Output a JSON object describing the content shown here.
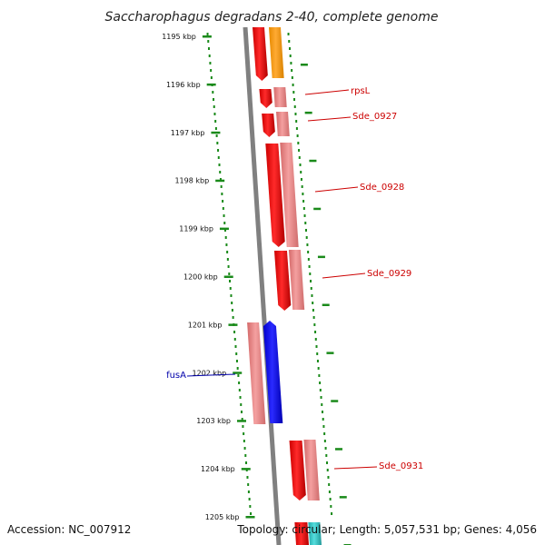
{
  "title": "Saccharophagus degradans 2-40, complete genome",
  "accession": "Accession: NC_007912",
  "topology": "Topology: circular; Length: 5,057,531 bp; Genes: 4,056",
  "ticks": [
    "1195 kbp",
    "1196 kbp",
    "1197 kbp",
    "1198 kbp",
    "1199 kbp",
    "1200 kbp",
    "1201 kbp",
    "1202 kbp",
    "1203 kbp",
    "1204 kbp",
    "1205 kbp"
  ],
  "genes": [
    {
      "name": "rpsL",
      "strand": "+"
    },
    {
      "name": "Sde_0927",
      "strand": "+"
    },
    {
      "name": "Sde_0928",
      "strand": "+"
    },
    {
      "name": "Sde_0929",
      "strand": "+"
    },
    {
      "name": "fusA",
      "strand": "-"
    },
    {
      "name": "Sde_0931",
      "strand": "+"
    }
  ],
  "colors": {
    "gene_forward": "#ff0000",
    "gene_forward_feature": "#f08080",
    "gene_reverse": "#0000ff",
    "gene_reverse_feature": "#f08080",
    "orange_feature": "#ff9900",
    "cyan_feature": "#33cccc",
    "axis": "#808080",
    "ruler": "#1a8a1a",
    "label_forward": "#cc0000",
    "label_reverse": "#0000aa"
  }
}
